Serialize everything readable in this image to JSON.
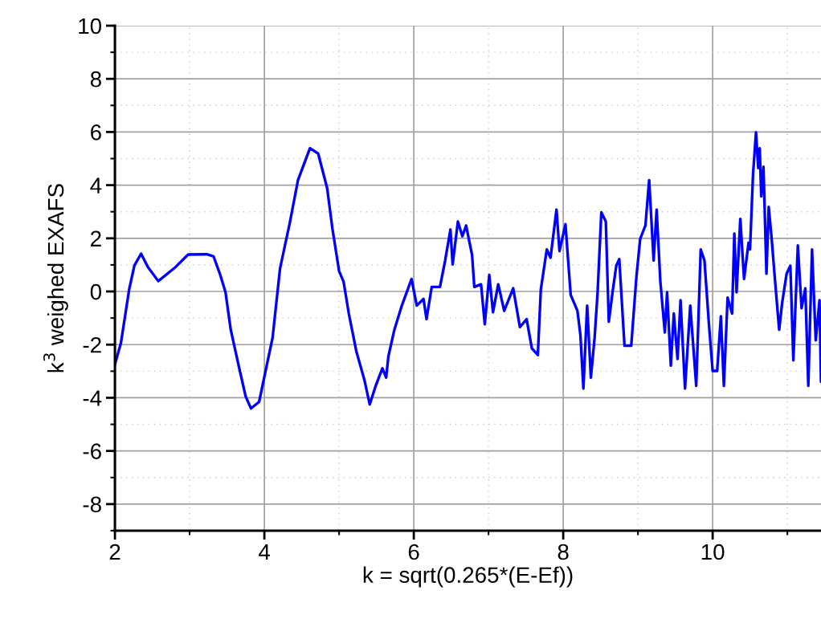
{
  "chart_data": {
    "type": "line",
    "xlabel": "k = sqrt(0.265*(E-Ef))",
    "ylabel": "k$^{3}$ weighed EXAFS",
    "xlim": [
      2,
      11.45
    ],
    "xticks": [
      2,
      4,
      6,
      8,
      10
    ],
    "ylim": [
      -9,
      10
    ],
    "yticks": [
      -8,
      -6,
      -4,
      -2,
      0,
      2,
      4,
      6,
      8,
      10
    ],
    "grid": true,
    "marker": "none",
    "line_style": "solid",
    "series": [
      {
        "color": "#0000ff",
        "x": [
          2.0,
          2.08,
          2.19,
          2.26,
          2.35,
          2.44,
          2.58,
          2.8,
          2.98,
          3.23,
          3.32,
          3.41,
          3.48,
          3.55,
          3.66,
          3.75,
          3.82,
          3.93,
          4.02,
          4.11,
          4.21,
          4.34,
          4.45,
          4.61,
          4.72,
          4.84,
          4.91,
          5.0,
          5.06,
          5.13,
          5.23,
          5.34,
          5.41,
          5.49,
          5.58,
          5.63,
          5.66,
          5.74,
          5.84,
          5.97,
          6.04,
          6.13,
          6.17,
          6.24,
          6.35,
          6.42,
          6.49,
          6.52,
          6.59,
          6.65,
          6.7,
          6.78,
          6.81,
          6.9,
          6.95,
          7.01,
          7.06,
          7.13,
          7.21,
          7.33,
          7.42,
          7.51,
          7.58,
          7.66,
          7.7,
          7.78,
          7.83,
          7.91,
          7.95,
          8.03,
          8.1,
          8.19,
          8.23,
          8.27,
          8.32,
          8.37,
          8.42,
          8.46,
          8.51,
          8.57,
          8.61,
          8.66,
          8.71,
          8.75,
          8.82,
          8.91,
          8.98,
          9.03,
          9.1,
          9.15,
          9.21,
          9.25,
          9.3,
          9.36,
          9.39,
          9.44,
          9.48,
          9.53,
          9.57,
          9.63,
          9.7,
          9.78,
          9.84,
          9.89,
          9.95,
          10.0,
          10.06,
          10.11,
          10.15,
          10.2,
          10.26,
          10.29,
          10.32,
          10.37,
          10.42,
          10.48,
          10.5,
          10.54,
          10.58,
          10.61,
          10.63,
          10.65,
          10.68,
          10.72,
          10.75,
          10.79,
          10.83,
          10.89,
          10.93,
          10.99,
          11.04,
          11.08,
          11.14,
          11.19,
          11.24,
          11.28,
          11.33,
          11.38,
          11.43,
          11.45
        ],
        "values": [
          -2.74,
          -1.94,
          0.07,
          0.97,
          1.42,
          0.92,
          0.39,
          0.89,
          1.39,
          1.4,
          1.32,
          0.62,
          -0.03,
          -1.44,
          -2.84,
          -3.95,
          -4.4,
          -4.15,
          -2.94,
          -1.74,
          0.87,
          2.58,
          4.19,
          5.39,
          5.19,
          3.89,
          2.38,
          0.77,
          0.37,
          -0.83,
          -2.24,
          -3.34,
          -4.25,
          -3.55,
          -2.89,
          -3.24,
          -2.44,
          -1.44,
          -0.53,
          0.47,
          -0.53,
          -0.28,
          -1.04,
          0.17,
          0.17,
          1.17,
          2.33,
          1.02,
          2.63,
          2.08,
          2.48,
          1.37,
          0.17,
          0.27,
          -1.23,
          0.62,
          -0.78,
          0.27,
          -0.73,
          0.12,
          -1.34,
          -1.04,
          -2.14,
          -2.39,
          0.07,
          1.58,
          1.27,
          3.08,
          1.52,
          2.53,
          -0.13,
          -0.73,
          -1.64,
          -3.65,
          -0.53,
          -3.24,
          -1.74,
          -0.03,
          2.98,
          2.63,
          -1.14,
          -0.03,
          0.97,
          1.22,
          -2.04,
          -2.04,
          0.57,
          1.98,
          2.48,
          4.19,
          1.17,
          3.08,
          0.37,
          -1.54,
          -0.03,
          -2.79,
          -0.83,
          -2.54,
          -0.33,
          -3.65,
          -0.53,
          -3.55,
          1.58,
          1.17,
          -1.23,
          -2.99,
          -2.99,
          -0.93,
          -3.55,
          -0.23,
          -0.83,
          2.18,
          -0.03,
          2.73,
          0.47,
          1.83,
          1.58,
          4.39,
          5.99,
          4.64,
          5.39,
          3.58,
          4.69,
          0.67,
          3.18,
          1.98,
          0.57,
          -1.44,
          -0.43,
          0.67,
          0.97,
          -2.59,
          1.73,
          -0.63,
          0.12,
          -3.55,
          1.58,
          -1.84,
          -0.33,
          -3.4
        ]
      }
    ]
  }
}
